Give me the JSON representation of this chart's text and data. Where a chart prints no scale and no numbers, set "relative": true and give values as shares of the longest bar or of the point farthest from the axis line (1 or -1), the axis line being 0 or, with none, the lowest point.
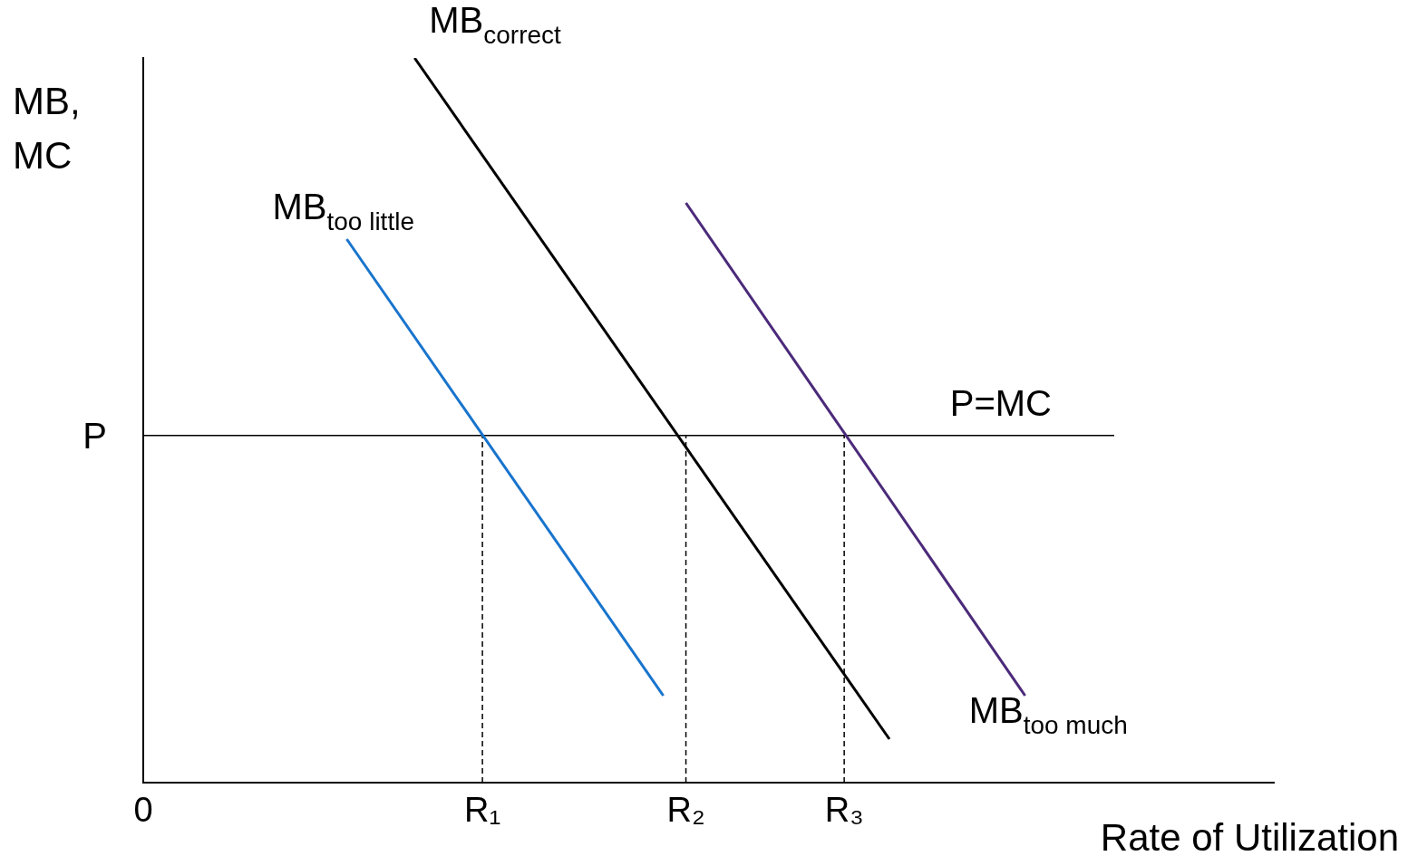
{
  "chart_data": {
    "type": "line",
    "relative": true,
    "xlabel": "Rate of Utilization",
    "ylabel": "MB, MC",
    "marker": "none",
    "grid": false,
    "legend": false,
    "categories": [
      "0",
      null,
      null,
      null,
      null,
      null,
      null,
      null,
      null,
      null,
      null,
      null,
      null,
      null,
      null,
      "R₁",
      null,
      null,
      null,
      null,
      null,
      null,
      null,
      null,
      "R₂",
      null,
      null,
      null,
      null,
      null,
      null,
      "R₃",
      null,
      null,
      null,
      null,
      null,
      null,
      null,
      null,
      null,
      null,
      null,
      null,
      null,
      null,
      null,
      null,
      null,
      null,
      null
    ],
    "annotations": [
      "P"
    ],
    "ref_lines": [
      {
        "axis": "y",
        "value": 0.479,
        "label": "P=MC",
        "color": "#000000"
      },
      {
        "axis": "x",
        "value": "R₁",
        "color": "#000000",
        "line_style": "dashed"
      },
      {
        "axis": "x",
        "value": "R₂",
        "color": "#000000",
        "line_style": "dashed"
      },
      {
        "axis": "x",
        "value": "R₃",
        "color": "#000000",
        "line_style": "dashed"
      }
    ],
    "series": [
      {
        "name": "MB$_{correct}$",
        "color": "#000000",
        "values": [
          null,
          null,
          null,
          null,
          null,
          null,
          null,
          null,
          null,
          null,
          null,
          null,
          1.0,
          null,
          null,
          null,
          null,
          null,
          null,
          null,
          null,
          null,
          null,
          null,
          null,
          null,
          null,
          null,
          null,
          null,
          null,
          null,
          null,
          0.06,
          null,
          null,
          null,
          null,
          null,
          null,
          null,
          null,
          null,
          null,
          null,
          null,
          null,
          null,
          null,
          null,
          null
        ]
      },
      {
        "name": "MB$_{too little}$",
        "color": "#1874cd",
        "values": [
          null,
          null,
          null,
          null,
          null,
          null,
          null,
          null,
          null,
          0.75,
          null,
          null,
          null,
          null,
          null,
          null,
          null,
          null,
          null,
          null,
          null,
          null,
          null,
          0.12,
          null,
          null,
          null,
          null,
          null,
          null,
          null,
          null,
          null,
          null,
          null,
          null,
          null,
          null,
          null,
          null,
          null,
          null,
          null,
          null,
          null,
          null,
          null,
          null,
          null,
          null,
          null
        ]
      },
      {
        "name": "MB$_{too much}$",
        "color": "#4b2a7a",
        "values": [
          null,
          null,
          null,
          null,
          null,
          null,
          null,
          null,
          null,
          null,
          null,
          null,
          null,
          null,
          null,
          null,
          null,
          null,
          null,
          null,
          null,
          null,
          null,
          null,
          0.8,
          null,
          null,
          null,
          null,
          null,
          null,
          null,
          null,
          null,
          null,
          null,
          null,
          null,
          null,
          0.12,
          null,
          null,
          null,
          null,
          null,
          null,
          null,
          null,
          null,
          null,
          null
        ]
      }
    ]
  }
}
